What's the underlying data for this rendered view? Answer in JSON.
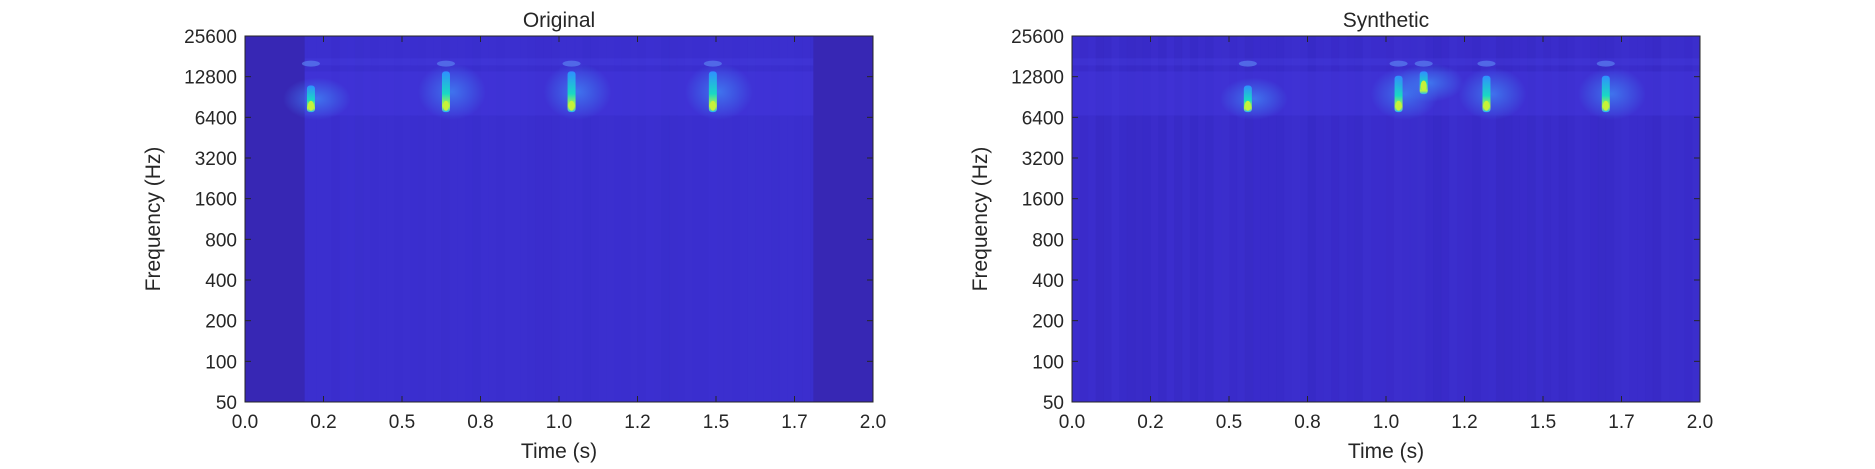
{
  "chart_data": [
    {
      "type": "heatmap",
      "title": "Original",
      "xlabel": "Time (s)",
      "ylabel": "Frequency (Hz)",
      "xlim": [
        0,
        2
      ],
      "ylim": [
        50,
        25600
      ],
      "yscale": "log",
      "xticks": [
        0,
        0.25,
        0.5,
        0.75,
        1.0,
        1.25,
        1.5,
        1.75,
        2.0
      ],
      "xtick_labels": [
        "0.0",
        "0.2",
        "0.5",
        "0.8",
        "1.0",
        "1.2",
        "1.5",
        "1.7",
        "2.0"
      ],
      "yticks": [
        50,
        100,
        200,
        400,
        800,
        1600,
        3200,
        6400,
        12800,
        25600
      ],
      "ytick_labels": [
        "50",
        "100",
        "200",
        "400",
        "800",
        "1600",
        "3200",
        "6400",
        "12800",
        "25600"
      ],
      "grid": false,
      "colormap": "parula",
      "background_color": "#3b2fcf",
      "quiet_regions": [
        {
          "t0": 0.0,
          "t1": 0.19,
          "color": "#3727b4"
        },
        {
          "t0": 1.81,
          "t1": 2.0,
          "color": "#3727b4"
        }
      ],
      "events": [
        {
          "t": 0.21,
          "f_low": 7000,
          "f_high": 11000,
          "peak_freq": 7800
        },
        {
          "t": 0.64,
          "f_low": 7000,
          "f_high": 14000,
          "peak_freq": 7800
        },
        {
          "t": 1.04,
          "f_low": 7000,
          "f_high": 14000,
          "peak_freq": 7800
        },
        {
          "t": 1.49,
          "f_low": 7000,
          "f_high": 14000,
          "peak_freq": 7800
        }
      ]
    },
    {
      "type": "heatmap",
      "title": "Synthetic",
      "xlabel": "Time (s)",
      "ylabel": "Frequency (Hz)",
      "xlim": [
        0,
        2
      ],
      "ylim": [
        50,
        25600
      ],
      "yscale": "log",
      "xticks": [
        0,
        0.25,
        0.5,
        0.75,
        1.0,
        1.25,
        1.5,
        1.75,
        2.0
      ],
      "xtick_labels": [
        "0.0",
        "0.2",
        "0.5",
        "0.8",
        "1.0",
        "1.2",
        "1.5",
        "1.7",
        "2.0"
      ],
      "yticks": [
        50,
        100,
        200,
        400,
        800,
        1600,
        3200,
        6400,
        12800,
        25600
      ],
      "ytick_labels": [
        "50",
        "100",
        "200",
        "400",
        "800",
        "1600",
        "3200",
        "6400",
        "12800",
        "25600"
      ],
      "grid": false,
      "colormap": "parula",
      "background_color": "#3a2ccb",
      "quiet_regions": [],
      "events": [
        {
          "t": 0.56,
          "f_low": 7000,
          "f_high": 11000,
          "peak_freq": 7800
        },
        {
          "t": 1.04,
          "f_low": 7000,
          "f_high": 13000,
          "peak_freq": 7800
        },
        {
          "t": 1.12,
          "f_low": 9500,
          "f_high": 14000,
          "peak_freq": 11000
        },
        {
          "t": 1.32,
          "f_low": 7000,
          "f_high": 13000,
          "peak_freq": 7800
        },
        {
          "t": 1.7,
          "f_low": 7000,
          "f_high": 13000,
          "peak_freq": 7800
        }
      ]
    }
  ]
}
